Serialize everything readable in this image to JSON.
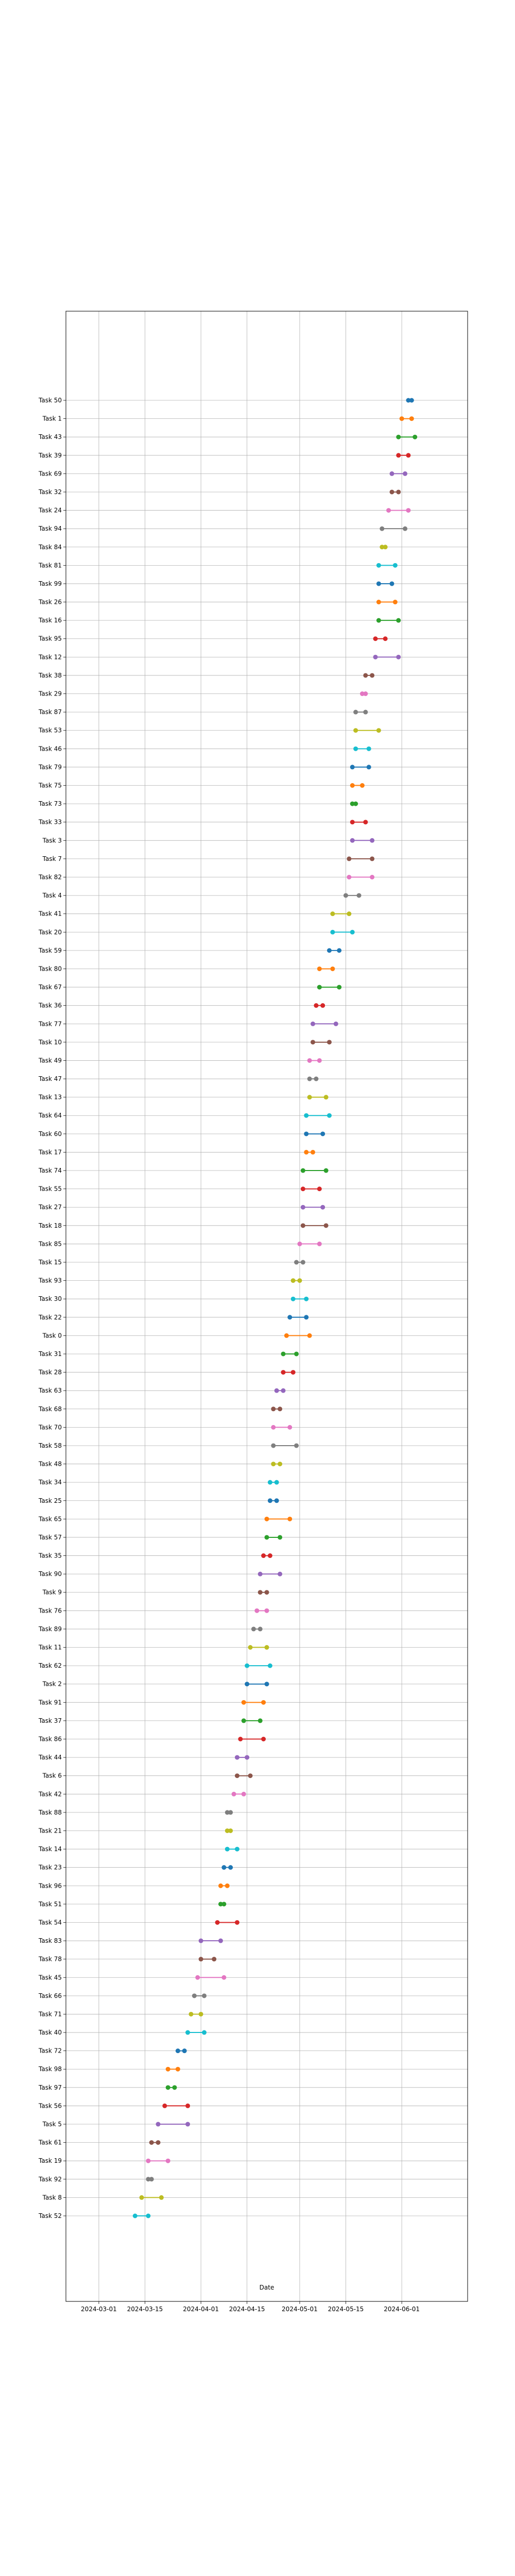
{
  "chart_data": {
    "type": "dumbbell",
    "title": "",
    "xlabel": "Date",
    "ylabel": "",
    "grid": true,
    "xlim": [
      "2024-02-20",
      "2024-06-21"
    ],
    "x_ticks": [
      "2024-03-01",
      "2024-03-15",
      "2024-04-01",
      "2024-04-15",
      "2024-05-01",
      "2024-05-15",
      "2024-06-01"
    ],
    "palette": [
      "#1f77b4",
      "#ff7f0e",
      "#2ca02c",
      "#d62728",
      "#9467bd",
      "#8c564b",
      "#e377c2",
      "#7f7f7f",
      "#bcbd22",
      "#17becf"
    ],
    "tasks": [
      {
        "label": "Task 50",
        "start": "2024-06-03",
        "end": "2024-06-04"
      },
      {
        "label": "Task 1",
        "start": "2024-06-01",
        "end": "2024-06-04"
      },
      {
        "label": "Task 43",
        "start": "2024-05-31",
        "end": "2024-06-05"
      },
      {
        "label": "Task 39",
        "start": "2024-05-31",
        "end": "2024-06-03"
      },
      {
        "label": "Task 69",
        "start": "2024-05-29",
        "end": "2024-06-02"
      },
      {
        "label": "Task 32",
        "start": "2024-05-29",
        "end": "2024-05-31"
      },
      {
        "label": "Task 24",
        "start": "2024-05-28",
        "end": "2024-06-03"
      },
      {
        "label": "Task 94",
        "start": "2024-05-26",
        "end": "2024-06-02"
      },
      {
        "label": "Task 84",
        "start": "2024-05-26",
        "end": "2024-05-27"
      },
      {
        "label": "Task 81",
        "start": "2024-05-25",
        "end": "2024-05-30"
      },
      {
        "label": "Task 99",
        "start": "2024-05-25",
        "end": "2024-05-29"
      },
      {
        "label": "Task 26",
        "start": "2024-05-25",
        "end": "2024-05-30"
      },
      {
        "label": "Task 16",
        "start": "2024-05-25",
        "end": "2024-05-31"
      },
      {
        "label": "Task 95",
        "start": "2024-05-24",
        "end": "2024-05-27"
      },
      {
        "label": "Task 12",
        "start": "2024-05-24",
        "end": "2024-05-31"
      },
      {
        "label": "Task 38",
        "start": "2024-05-21",
        "end": "2024-05-23"
      },
      {
        "label": "Task 29",
        "start": "2024-05-20",
        "end": "2024-05-21"
      },
      {
        "label": "Task 87",
        "start": "2024-05-18",
        "end": "2024-05-21"
      },
      {
        "label": "Task 53",
        "start": "2024-05-18",
        "end": "2024-05-25"
      },
      {
        "label": "Task 46",
        "start": "2024-05-18",
        "end": "2024-05-22"
      },
      {
        "label": "Task 79",
        "start": "2024-05-17",
        "end": "2024-05-22"
      },
      {
        "label": "Task 75",
        "start": "2024-05-17",
        "end": "2024-05-20"
      },
      {
        "label": "Task 73",
        "start": "2024-05-17",
        "end": "2024-05-18"
      },
      {
        "label": "Task 33",
        "start": "2024-05-17",
        "end": "2024-05-21"
      },
      {
        "label": "Task 3",
        "start": "2024-05-17",
        "end": "2024-05-23"
      },
      {
        "label": "Task 7",
        "start": "2024-05-16",
        "end": "2024-05-23"
      },
      {
        "label": "Task 82",
        "start": "2024-05-16",
        "end": "2024-05-23"
      },
      {
        "label": "Task 4",
        "start": "2024-05-15",
        "end": "2024-05-19"
      },
      {
        "label": "Task 41",
        "start": "2024-05-11",
        "end": "2024-05-16"
      },
      {
        "label": "Task 20",
        "start": "2024-05-11",
        "end": "2024-05-17"
      },
      {
        "label": "Task 59",
        "start": "2024-05-10",
        "end": "2024-05-13"
      },
      {
        "label": "Task 80",
        "start": "2024-05-07",
        "end": "2024-05-11"
      },
      {
        "label": "Task 67",
        "start": "2024-05-07",
        "end": "2024-05-13"
      },
      {
        "label": "Task 36",
        "start": "2024-05-06",
        "end": "2024-05-08"
      },
      {
        "label": "Task 77",
        "start": "2024-05-05",
        "end": "2024-05-12"
      },
      {
        "label": "Task 10",
        "start": "2024-05-05",
        "end": "2024-05-10"
      },
      {
        "label": "Task 49",
        "start": "2024-05-04",
        "end": "2024-05-07"
      },
      {
        "label": "Task 47",
        "start": "2024-05-04",
        "end": "2024-05-06"
      },
      {
        "label": "Task 13",
        "start": "2024-05-04",
        "end": "2024-05-09"
      },
      {
        "label": "Task 64",
        "start": "2024-05-03",
        "end": "2024-05-10"
      },
      {
        "label": "Task 60",
        "start": "2024-05-03",
        "end": "2024-05-08"
      },
      {
        "label": "Task 17",
        "start": "2024-05-03",
        "end": "2024-05-05"
      },
      {
        "label": "Task 74",
        "start": "2024-05-02",
        "end": "2024-05-09"
      },
      {
        "label": "Task 55",
        "start": "2024-05-02",
        "end": "2024-05-07"
      },
      {
        "label": "Task 27",
        "start": "2024-05-02",
        "end": "2024-05-08"
      },
      {
        "label": "Task 18",
        "start": "2024-05-02",
        "end": "2024-05-09"
      },
      {
        "label": "Task 85",
        "start": "2024-05-01",
        "end": "2024-05-07"
      },
      {
        "label": "Task 15",
        "start": "2024-04-30",
        "end": "2024-05-02"
      },
      {
        "label": "Task 93",
        "start": "2024-04-29",
        "end": "2024-05-01"
      },
      {
        "label": "Task 30",
        "start": "2024-04-29",
        "end": "2024-05-03"
      },
      {
        "label": "Task 22",
        "start": "2024-04-28",
        "end": "2024-05-03"
      },
      {
        "label": "Task 0",
        "start": "2024-04-27",
        "end": "2024-05-04"
      },
      {
        "label": "Task 31",
        "start": "2024-04-26",
        "end": "2024-04-30"
      },
      {
        "label": "Task 28",
        "start": "2024-04-26",
        "end": "2024-04-29"
      },
      {
        "label": "Task 63",
        "start": "2024-04-24",
        "end": "2024-04-26"
      },
      {
        "label": "Task 68",
        "start": "2024-04-23",
        "end": "2024-04-25"
      },
      {
        "label": "Task 70",
        "start": "2024-04-23",
        "end": "2024-04-28"
      },
      {
        "label": "Task 58",
        "start": "2024-04-23",
        "end": "2024-04-30"
      },
      {
        "label": "Task 48",
        "start": "2024-04-23",
        "end": "2024-04-25"
      },
      {
        "label": "Task 34",
        "start": "2024-04-22",
        "end": "2024-04-24"
      },
      {
        "label": "Task 25",
        "start": "2024-04-22",
        "end": "2024-04-24"
      },
      {
        "label": "Task 65",
        "start": "2024-04-21",
        "end": "2024-04-28"
      },
      {
        "label": "Task 57",
        "start": "2024-04-21",
        "end": "2024-04-25"
      },
      {
        "label": "Task 35",
        "start": "2024-04-20",
        "end": "2024-04-22"
      },
      {
        "label": "Task 90",
        "start": "2024-04-19",
        "end": "2024-04-25"
      },
      {
        "label": "Task 9",
        "start": "2024-04-19",
        "end": "2024-04-21"
      },
      {
        "label": "Task 76",
        "start": "2024-04-18",
        "end": "2024-04-21"
      },
      {
        "label": "Task 89",
        "start": "2024-04-17",
        "end": "2024-04-19"
      },
      {
        "label": "Task 11",
        "start": "2024-04-16",
        "end": "2024-04-21"
      },
      {
        "label": "Task 62",
        "start": "2024-04-15",
        "end": "2024-04-22"
      },
      {
        "label": "Task 2",
        "start": "2024-04-15",
        "end": "2024-04-21"
      },
      {
        "label": "Task 91",
        "start": "2024-04-14",
        "end": "2024-04-20"
      },
      {
        "label": "Task 37",
        "start": "2024-04-14",
        "end": "2024-04-19"
      },
      {
        "label": "Task 86",
        "start": "2024-04-13",
        "end": "2024-04-20"
      },
      {
        "label": "Task 44",
        "start": "2024-04-12",
        "end": "2024-04-15"
      },
      {
        "label": "Task 6",
        "start": "2024-04-12",
        "end": "2024-04-16"
      },
      {
        "label": "Task 42",
        "start": "2024-04-11",
        "end": "2024-04-14"
      },
      {
        "label": "Task 88",
        "start": "2024-04-09",
        "end": "2024-04-10"
      },
      {
        "label": "Task 21",
        "start": "2024-04-09",
        "end": "2024-04-10"
      },
      {
        "label": "Task 14",
        "start": "2024-04-09",
        "end": "2024-04-12"
      },
      {
        "label": "Task 23",
        "start": "2024-04-08",
        "end": "2024-04-10"
      },
      {
        "label": "Task 96",
        "start": "2024-04-07",
        "end": "2024-04-09"
      },
      {
        "label": "Task 51",
        "start": "2024-04-07",
        "end": "2024-04-08"
      },
      {
        "label": "Task 54",
        "start": "2024-04-06",
        "end": "2024-04-12"
      },
      {
        "label": "Task 83",
        "start": "2024-04-01",
        "end": "2024-04-07"
      },
      {
        "label": "Task 78",
        "start": "2024-04-01",
        "end": "2024-04-05"
      },
      {
        "label": "Task 45",
        "start": "2024-03-31",
        "end": "2024-04-08"
      },
      {
        "label": "Task 66",
        "start": "2024-03-30",
        "end": "2024-04-02"
      },
      {
        "label": "Task 71",
        "start": "2024-03-29",
        "end": "2024-04-01"
      },
      {
        "label": "Task 40",
        "start": "2024-03-28",
        "end": "2024-04-02"
      },
      {
        "label": "Task 72",
        "start": "2024-03-25",
        "end": "2024-03-27"
      },
      {
        "label": "Task 98",
        "start": "2024-03-22",
        "end": "2024-03-25"
      },
      {
        "label": "Task 97",
        "start": "2024-03-22",
        "end": "2024-03-24"
      },
      {
        "label": "Task 56",
        "start": "2024-03-21",
        "end": "2024-03-28"
      },
      {
        "label": "Task 5",
        "start": "2024-03-19",
        "end": "2024-03-28"
      },
      {
        "label": "Task 61",
        "start": "2024-03-17",
        "end": "2024-03-19"
      },
      {
        "label": "Task 19",
        "start": "2024-03-16",
        "end": "2024-03-22"
      },
      {
        "label": "Task 92",
        "start": "2024-03-16",
        "end": "2024-03-17"
      },
      {
        "label": "Task 8",
        "start": "2024-03-14",
        "end": "2024-03-20"
      },
      {
        "label": "Task 52",
        "start": "2024-03-12",
        "end": "2024-03-16"
      }
    ]
  }
}
